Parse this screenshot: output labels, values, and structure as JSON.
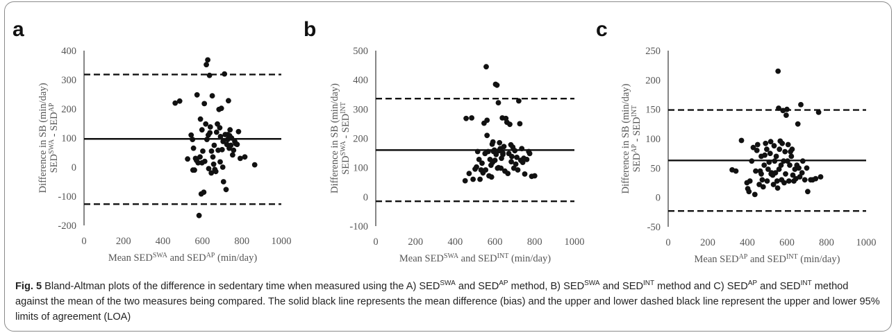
{
  "caption": {
    "label": "Fig. 5",
    "text": "Bland-Altman plots of the difference in sedentary time when measured using the A) SED^SWA and SED^AP method, B) SED^SWA and SED^INT method and C) SED^AP and SED^INT method against the mean of the two measures being compared. The solid black line represents the mean difference (bias) and the upper and lower dashed black line represent the upper and lower 95% limits of agreement (LOA)"
  },
  "chart_data": [
    {
      "panel": "a",
      "type": "scatter",
      "xlabel": "Mean SED^SWA and SED^AP (min/day)",
      "ylabel_line1": "Difference in SB (min/day)",
      "ylabel_line2": "SED^SWA - SED^AP",
      "xlim": [
        0,
        1000
      ],
      "ylim": [
        -200,
        400
      ],
      "xticks": [
        0,
        200,
        400,
        600,
        800,
        1000
      ],
      "yticks": [
        -200,
        -100,
        0,
        100,
        200,
        300,
        400
      ],
      "bias": 97,
      "loa_upper": 318,
      "loa_lower": -127,
      "points": [
        [
          462,
          220
        ],
        [
          485,
          227
        ],
        [
          543,
          110
        ],
        [
          555,
          65
        ],
        [
          560,
          -10
        ],
        [
          565,
          30
        ],
        [
          573,
          248
        ],
        [
          578,
          15
        ],
        [
          583,
          -166
        ],
        [
          590,
          165
        ],
        [
          594,
          -92
        ],
        [
          598,
          128
        ],
        [
          602,
          55
        ],
        [
          607,
          -86
        ],
        [
          610,
          218
        ],
        [
          612,
          20
        ],
        [
          617,
          148
        ],
        [
          620,
          352
        ],
        [
          623,
          95
        ],
        [
          627,
          368
        ],
        [
          630,
          110
        ],
        [
          632,
          -5
        ],
        [
          636,
          315
        ],
        [
          640,
          138
        ],
        [
          645,
          -20
        ],
        [
          650,
          245
        ],
        [
          653,
          35
        ],
        [
          657,
          10
        ],
        [
          660,
          75
        ],
        [
          663,
          -8
        ],
        [
          668,
          -15
        ],
        [
          672,
          120
        ],
        [
          676,
          148
        ],
        [
          680,
          58
        ],
        [
          684,
          198
        ],
        [
          688,
          135
        ],
        [
          692,
          105
        ],
        [
          696,
          202
        ],
        [
          700,
          60
        ],
        [
          703,
          0
        ],
        [
          707,
          -50
        ],
        [
          712,
          320
        ],
        [
          716,
          112
        ],
        [
          720,
          -77
        ],
        [
          724,
          78
        ],
        [
          728,
          95
        ],
        [
          732,
          228
        ],
        [
          736,
          65
        ],
        [
          740,
          128
        ],
        [
          744,
          75
        ],
        [
          748,
          100
        ],
        [
          753,
          42
        ],
        [
          758,
          58
        ],
        [
          764,
          88
        ],
        [
          770,
          80
        ],
        [
          776,
          78
        ],
        [
          783,
          122
        ],
        [
          792,
          30
        ],
        [
          815,
          35
        ],
        [
          865,
          8
        ],
        [
          525,
          28
        ],
        [
          550,
          95
        ],
        [
          570,
          23
        ],
        [
          588,
          35
        ],
        [
          638,
          118
        ],
        [
          598,
          15
        ],
        [
          646,
          55
        ],
        [
          690,
          18
        ],
        [
          728,
          112
        ],
        [
          705,
          88
        ],
        [
          738,
          108
        ],
        [
          552,
          -10
        ]
      ]
    },
    {
      "panel": "b",
      "type": "scatter",
      "xlabel": "Mean SED^SWA and SED^INT (min/day)",
      "ylabel_line1": "Difference in SB (min/day)",
      "ylabel_line2": "SED^SWA - SED^INT",
      "xlim": [
        0,
        1000
      ],
      "ylim": [
        -100,
        500
      ],
      "xticks": [
        0,
        200,
        400,
        600,
        800,
        1000
      ],
      "yticks": [
        -100,
        0,
        100,
        200,
        300,
        400,
        500
      ],
      "bias": 160,
      "loa_upper": 336,
      "loa_lower": -15,
      "points": [
        [
          450,
          55
        ],
        [
          455,
          268
        ],
        [
          470,
          80
        ],
        [
          483,
          270
        ],
        [
          490,
          60
        ],
        [
          500,
          95
        ],
        [
          507,
          102
        ],
        [
          513,
          155
        ],
        [
          520,
          128
        ],
        [
          525,
          60
        ],
        [
          530,
          92
        ],
        [
          535,
          115
        ],
        [
          540,
          82
        ],
        [
          545,
          252
        ],
        [
          550,
          148
        ],
        [
          553,
          92
        ],
        [
          556,
          445
        ],
        [
          560,
          262
        ],
        [
          566,
          155
        ],
        [
          570,
          72
        ],
        [
          575,
          128
        ],
        [
          580,
          108
        ],
        [
          583,
          68
        ],
        [
          586,
          180
        ],
        [
          590,
          188
        ],
        [
          593,
          155
        ],
        [
          597,
          160
        ],
        [
          600,
          125
        ],
        [
          603,
          385
        ],
        [
          606,
          145
        ],
        [
          610,
          382
        ],
        [
          613,
          98
        ],
        [
          617,
          322
        ],
        [
          620,
          158
        ],
        [
          623,
          185
        ],
        [
          627,
          165
        ],
        [
          630,
          98
        ],
        [
          633,
          132
        ],
        [
          637,
          270
        ],
        [
          640,
          145
        ],
        [
          645,
          172
        ],
        [
          650,
          88
        ],
        [
          655,
          268
        ],
        [
          660,
          255
        ],
        [
          665,
          80
        ],
        [
          670,
          148
        ],
        [
          675,
          248
        ],
        [
          680,
          178
        ],
        [
          685,
          138
        ],
        [
          690,
          170
        ],
        [
          695,
          98
        ],
        [
          700,
          158
        ],
        [
          705,
          112
        ],
        [
          710,
          135
        ],
        [
          715,
          92
        ],
        [
          720,
          328
        ],
        [
          725,
          250
        ],
        [
          730,
          125
        ],
        [
          735,
          165
        ],
        [
          740,
          118
        ],
        [
          745,
          132
        ],
        [
          750,
          78
        ],
        [
          760,
          128
        ],
        [
          770,
          155
        ],
        [
          775,
          148
        ],
        [
          785,
          70
        ],
        [
          800,
          72
        ],
        [
          640,
          150
        ],
        [
          588,
          118
        ],
        [
          560,
          210
        ],
        [
          682,
          120
        ],
        [
          618,
          100
        ]
      ]
    },
    {
      "panel": "c",
      "type": "scatter",
      "xlabel": "Mean SED^AP and SED^INT (min/day)",
      "ylabel_line1": "Difference in SB (min/day)",
      "ylabel_line2": "SED^AP - SED^INT",
      "xlim": [
        0,
        1000
      ],
      "ylim": [
        -50,
        250
      ],
      "xticks": [
        0,
        200,
        400,
        600,
        800,
        1000
      ],
      "yticks": [
        -50,
        0,
        50,
        100,
        150,
        200,
        250
      ],
      "bias": 63,
      "loa_upper": 149,
      "loa_lower": -23,
      "points": [
        [
          323,
          47
        ],
        [
          342,
          45
        ],
        [
          370,
          97
        ],
        [
          398,
          25
        ],
        [
          402,
          15
        ],
        [
          408,
          10
        ],
        [
          413,
          28
        ],
        [
          422,
          62
        ],
        [
          430,
          85
        ],
        [
          438,
          5
        ],
        [
          442,
          45
        ],
        [
          448,
          80
        ],
        [
          452,
          90
        ],
        [
          460,
          22
        ],
        [
          465,
          45
        ],
        [
          470,
          70
        ],
        [
          475,
          30
        ],
        [
          480,
          18
        ],
        [
          485,
          55
        ],
        [
          488,
          72
        ],
        [
          492,
          92
        ],
        [
          498,
          82
        ],
        [
          500,
          28
        ],
        [
          505,
          48
        ],
        [
          510,
          60
        ],
        [
          515,
          75
        ],
        [
          518,
          95
        ],
        [
          522,
          42
        ],
        [
          528,
          38
        ],
        [
          532,
          22
        ],
        [
          535,
          88
        ],
        [
          538,
          62
        ],
        [
          542,
          42
        ],
        [
          546,
          70
        ],
        [
          550,
          28
        ],
        [
          553,
          16
        ],
        [
          555,
          215
        ],
        [
          558,
          152
        ],
        [
          560,
          48
        ],
        [
          562,
          82
        ],
        [
          566,
          96
        ],
        [
          570,
          55
        ],
        [
          573,
          30
        ],
        [
          576,
          92
        ],
        [
          580,
          148
        ],
        [
          583,
          62
        ],
        [
          586,
          25
        ],
        [
          590,
          78
        ],
        [
          593,
          40
        ],
        [
          596,
          140
        ],
        [
          600,
          150
        ],
        [
          603,
          62
        ],
        [
          606,
          90
        ],
        [
          610,
          28
        ],
        [
          614,
          55
        ],
        [
          618,
          78
        ],
        [
          622,
          70
        ],
        [
          626,
          82
        ],
        [
          630,
          38
        ],
        [
          635,
          28
        ],
        [
          640,
          48
        ],
        [
          645,
          32
        ],
        [
          650,
          55
        ],
        [
          655,
          125
        ],
        [
          660,
          50
        ],
        [
          665,
          35
        ],
        [
          670,
          158
        ],
        [
          676,
          42
        ],
        [
          680,
          62
        ],
        [
          690,
          30
        ],
        [
          700,
          50
        ],
        [
          705,
          10
        ],
        [
          720,
          30
        ],
        [
          730,
          30
        ],
        [
          745,
          32
        ],
        [
          760,
          145
        ],
        [
          770,
          35
        ],
        [
          520,
          40
        ],
        [
          470,
          40
        ]
      ]
    }
  ]
}
